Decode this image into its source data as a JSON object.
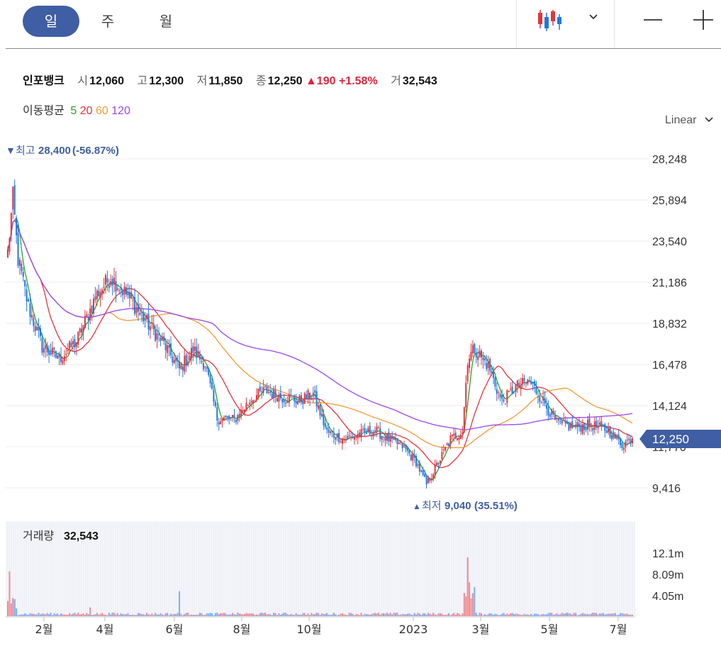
{
  "toolbar": {
    "tabs": [
      {
        "label": "일",
        "active": true
      },
      {
        "label": "주",
        "active": false
      },
      {
        "label": "월",
        "active": false
      }
    ],
    "chart_type_icon": "candlestick-icon",
    "dropdown_icon": "chevron-down-icon",
    "zoom_out_icon": "minus-icon",
    "zoom_in_icon": "plus-icon"
  },
  "info": {
    "name": "인포뱅크",
    "open_label": "시",
    "open": "12,060",
    "high_label": "고",
    "high": "12,300",
    "low_label": "저",
    "low": "11,850",
    "close_label": "종",
    "close": "12,250",
    "change": "▲190",
    "change_pct": "+1.58%",
    "volume_label": "거",
    "volume": "32,543"
  },
  "moving_average": {
    "label": "이동평균",
    "periods": [
      {
        "value": "5",
        "color": "#2aa32a"
      },
      {
        "value": "20",
        "color": "#e8323c"
      },
      {
        "value": "60",
        "color": "#f39a3a"
      },
      {
        "value": "120",
        "color": "#9b47e8"
      }
    ]
  },
  "scale_mode": "Linear",
  "colors": {
    "up": "#e8323c",
    "down": "#1e78e0",
    "accent": "#3f5ea3"
  },
  "chart_data": {
    "type": "candlestick",
    "y_ticks": [
      "28,248",
      "25,894",
      "23,540",
      "21,186",
      "18,832",
      "16,478",
      "14,124",
      "11,770",
      "9,416"
    ],
    "ylim": [
      8600,
      29200
    ],
    "x_ticks": [
      "2월",
      "4월",
      "6월",
      "8월",
      "10월",
      "2023",
      "3월",
      "5월",
      "7월"
    ],
    "max_marker": {
      "label": "최고",
      "value": "28,400",
      "pct": "(-56.87%)"
    },
    "min_marker": {
      "label": "최저",
      "value": "9,040",
      "pct": "(35.51%)"
    },
    "last_price_tag": "12,250",
    "volume_panel": {
      "label": "거래량",
      "value": "32,543",
      "y_ticks": [
        "12.1m",
        "8.09m",
        "4.05m"
      ]
    },
    "price_path": [
      {
        "i": 0,
        "v": 22900
      },
      {
        "i": 3,
        "v": 26000
      },
      {
        "i": 6,
        "v": 22500
      },
      {
        "i": 12,
        "v": 19800
      },
      {
        "i": 20,
        "v": 17500
      },
      {
        "i": 30,
        "v": 16800
      },
      {
        "i": 40,
        "v": 17800
      },
      {
        "i": 52,
        "v": 20500
      },
      {
        "i": 60,
        "v": 21500
      },
      {
        "i": 70,
        "v": 20400
      },
      {
        "i": 80,
        "v": 19000
      },
      {
        "i": 90,
        "v": 17800
      },
      {
        "i": 100,
        "v": 16200
      },
      {
        "i": 108,
        "v": 17300
      },
      {
        "i": 115,
        "v": 16500
      },
      {
        "i": 122,
        "v": 13400
      },
      {
        "i": 132,
        "v": 13300
      },
      {
        "i": 142,
        "v": 14500
      },
      {
        "i": 150,
        "v": 15000
      },
      {
        "i": 160,
        "v": 14600
      },
      {
        "i": 170,
        "v": 14400
      },
      {
        "i": 178,
        "v": 14800
      },
      {
        "i": 186,
        "v": 12600
      },
      {
        "i": 196,
        "v": 12200
      },
      {
        "i": 206,
        "v": 12500
      },
      {
        "i": 214,
        "v": 12700
      },
      {
        "i": 222,
        "v": 12200
      },
      {
        "i": 230,
        "v": 11800
      },
      {
        "i": 238,
        "v": 10900
      },
      {
        "i": 244,
        "v": 9600
      },
      {
        "i": 250,
        "v": 10700
      },
      {
        "i": 258,
        "v": 12200
      },
      {
        "i": 265,
        "v": 12700
      },
      {
        "i": 268,
        "v": 16800
      },
      {
        "i": 272,
        "v": 17400
      },
      {
        "i": 280,
        "v": 16400
      },
      {
        "i": 288,
        "v": 14300
      },
      {
        "i": 296,
        "v": 15200
      },
      {
        "i": 304,
        "v": 15500
      },
      {
        "i": 312,
        "v": 14400
      },
      {
        "i": 320,
        "v": 13100
      },
      {
        "i": 330,
        "v": 12900
      },
      {
        "i": 340,
        "v": 13000
      },
      {
        "i": 350,
        "v": 12700
      },
      {
        "i": 358,
        "v": 11900
      },
      {
        "i": 364,
        "v": 12250
      }
    ]
  }
}
